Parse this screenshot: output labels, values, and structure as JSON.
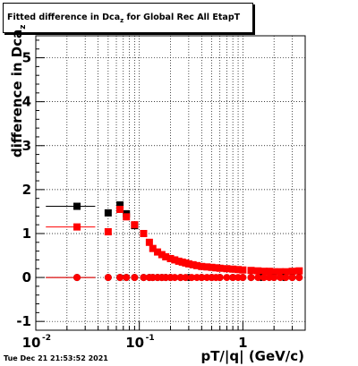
{
  "chart_data": {
    "type": "scatter",
    "title": {
      "prefix": "Fitted difference in Dca",
      "subscript": "z",
      "suffix": " for Global Rec All EtapT"
    },
    "ylabel": {
      "text": "difference in Dca",
      "subscript": "z"
    },
    "xlabel": "pT/|q| (GeV/c)",
    "x_scale": "log",
    "xlim": [
      0.01,
      4.0
    ],
    "ylim": [
      -1.2,
      5.5
    ],
    "x_ticks": [
      {
        "value": 0.01,
        "label": "10",
        "exp": "-2"
      },
      {
        "value": 0.1,
        "label": "10",
        "exp": "-1"
      },
      {
        "value": 1,
        "label": "1",
        "exp": ""
      }
    ],
    "y_ticks": [
      -1,
      0,
      1,
      2,
      3,
      4,
      5
    ],
    "grid": true,
    "series": [
      {
        "color": "#000000",
        "marker": "square",
        "x": [
          0.025,
          0.05,
          0.065,
          0.075,
          0.09
        ],
        "xerr": [
          0.0125,
          0.0,
          0.0,
          0.0,
          0.0
        ],
        "y": [
          1.62,
          1.47,
          1.65,
          1.45,
          1.18
        ]
      },
      {
        "color": "#ff0000",
        "marker": "square",
        "x": [
          0.025,
          0.05,
          0.065,
          0.075,
          0.09,
          0.11,
          0.125,
          0.135,
          0.15,
          0.165,
          0.18,
          0.2,
          0.22,
          0.24,
          0.26,
          0.28,
          0.3,
          0.33,
          0.36,
          0.4,
          0.45,
          0.5,
          0.55,
          0.6,
          0.7,
          0.8,
          0.9,
          1.0,
          1.2,
          1.4,
          1.6,
          1.8,
          2.0,
          2.3,
          2.6,
          3.0,
          3.5
        ],
        "xerr": [
          0.0125,
          0.0,
          0.0,
          0.0,
          0.0,
          0.0,
          0.0,
          0.0,
          0.0,
          0.0,
          0.0,
          0.0,
          0.0,
          0.0,
          0.0,
          0.0,
          0.0,
          0.0,
          0.0,
          0.0,
          0.0,
          0.0,
          0.0,
          0.0,
          0.0,
          0.0,
          0.0,
          0.0,
          0.0,
          0.0,
          0.0,
          0.0,
          0.0,
          0.0,
          0.0,
          0.0,
          0.0
        ],
        "y": [
          1.15,
          1.04,
          1.55,
          1.38,
          1.2,
          1.0,
          0.8,
          0.66,
          0.58,
          0.52,
          0.47,
          0.43,
          0.4,
          0.37,
          0.35,
          0.33,
          0.31,
          0.29,
          0.27,
          0.25,
          0.24,
          0.23,
          0.22,
          0.21,
          0.2,
          0.19,
          0.18,
          0.17,
          0.16,
          0.15,
          0.14,
          0.14,
          0.13,
          0.13,
          0.13,
          0.14,
          0.15
        ]
      },
      {
        "color": "#000000",
        "marker": "circle",
        "x": [
          0.025,
          0.05,
          0.065,
          0.075,
          0.09,
          0.11,
          0.125,
          0.135,
          0.15,
          0.165,
          0.18,
          0.2,
          0.25,
          0.3,
          0.4,
          0.5,
          0.6,
          0.8,
          1.0,
          1.2,
          1.5,
          2.0,
          2.5,
          3.0,
          3.5
        ],
        "xerr": [
          0.0125,
          0.0,
          0.0,
          0.0,
          0.0,
          0.0,
          0.0,
          0.0,
          0.0,
          0.0,
          0.0,
          0.0,
          0.0,
          0.0,
          0.0,
          0.0,
          0.0,
          0.0,
          0.0,
          0.0,
          0.0,
          0.0,
          0.0,
          0.0,
          0.0
        ],
        "y": [
          0.0,
          0.0,
          0.0,
          0.0,
          0.0,
          0.0,
          0.0,
          0.0,
          0.0,
          0.0,
          0.0,
          0.0,
          0.0,
          0.0,
          0.0,
          0.0,
          0.0,
          0.0,
          0.0,
          0.0,
          0.0,
          0.0,
          0.0,
          0.0,
          0.0
        ]
      },
      {
        "color": "#ff0000",
        "marker": "circle",
        "x": [
          0.025,
          0.05,
          0.065,
          0.075,
          0.09,
          0.11,
          0.125,
          0.135,
          0.15,
          0.165,
          0.18,
          0.2,
          0.22,
          0.25,
          0.28,
          0.32,
          0.36,
          0.4,
          0.45,
          0.5,
          0.55,
          0.6,
          0.7,
          0.8,
          0.9,
          1.0,
          1.2,
          1.4,
          1.6,
          1.8,
          2.0,
          2.3,
          2.6,
          3.0,
          3.5
        ],
        "xerr": [
          0.0125,
          0.0,
          0.0,
          0.0,
          0.0,
          0.0,
          0.0,
          0.0,
          0.0,
          0.0,
          0.0,
          0.0,
          0.0,
          0.0,
          0.0,
          0.0,
          0.0,
          0.0,
          0.0,
          0.0,
          0.0,
          0.0,
          0.0,
          0.0,
          0.0,
          0.0,
          0.0,
          0.0,
          0.0,
          0.0,
          0.0,
          0.0,
          0.0,
          0.0,
          0.0
        ],
        "y": [
          0.0,
          0.0,
          0.0,
          0.0,
          0.0,
          0.0,
          0.0,
          0.0,
          0.0,
          0.0,
          0.0,
          0.0,
          0.0,
          0.0,
          0.0,
          0.0,
          0.0,
          0.0,
          0.0,
          0.0,
          0.0,
          0.0,
          0.0,
          0.0,
          0.0,
          0.0,
          0.0,
          0.0,
          0.0,
          0.0,
          0.0,
          0.0,
          0.0,
          0.0,
          0.0
        ]
      }
    ]
  },
  "timestamp": "Tue Dec 21 21:53:52 2021"
}
